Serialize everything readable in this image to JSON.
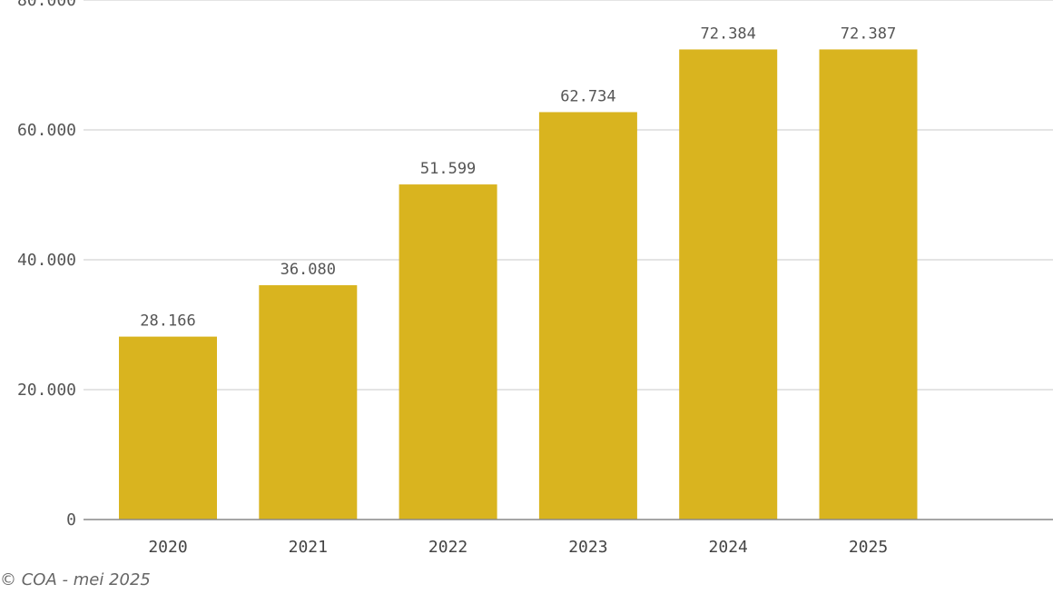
{
  "chart_data": {
    "type": "bar",
    "categories": [
      "2020",
      "2021",
      "2022",
      "2023",
      "2024",
      "2025"
    ],
    "values": [
      28166,
      36080,
      51599,
      62734,
      72384,
      72387
    ],
    "value_labels": [
      "28.166",
      "36.080",
      "51.599",
      "62.734",
      "72.384",
      "72.387"
    ],
    "ylim": [
      0,
      80000
    ],
    "yticks": [
      0,
      20000,
      40000,
      60000,
      80000
    ],
    "ytick_labels": [
      "0",
      "20.000",
      "40.000",
      "60.000",
      "80.000"
    ],
    "title": "",
    "xlabel": "",
    "ylabel": "",
    "grid": true,
    "colors": {
      "bar": "#D9B41F",
      "grid": "#C8C8C8",
      "axis": "#888888"
    }
  },
  "footer": {
    "source": "© COA - mei 2025"
  }
}
